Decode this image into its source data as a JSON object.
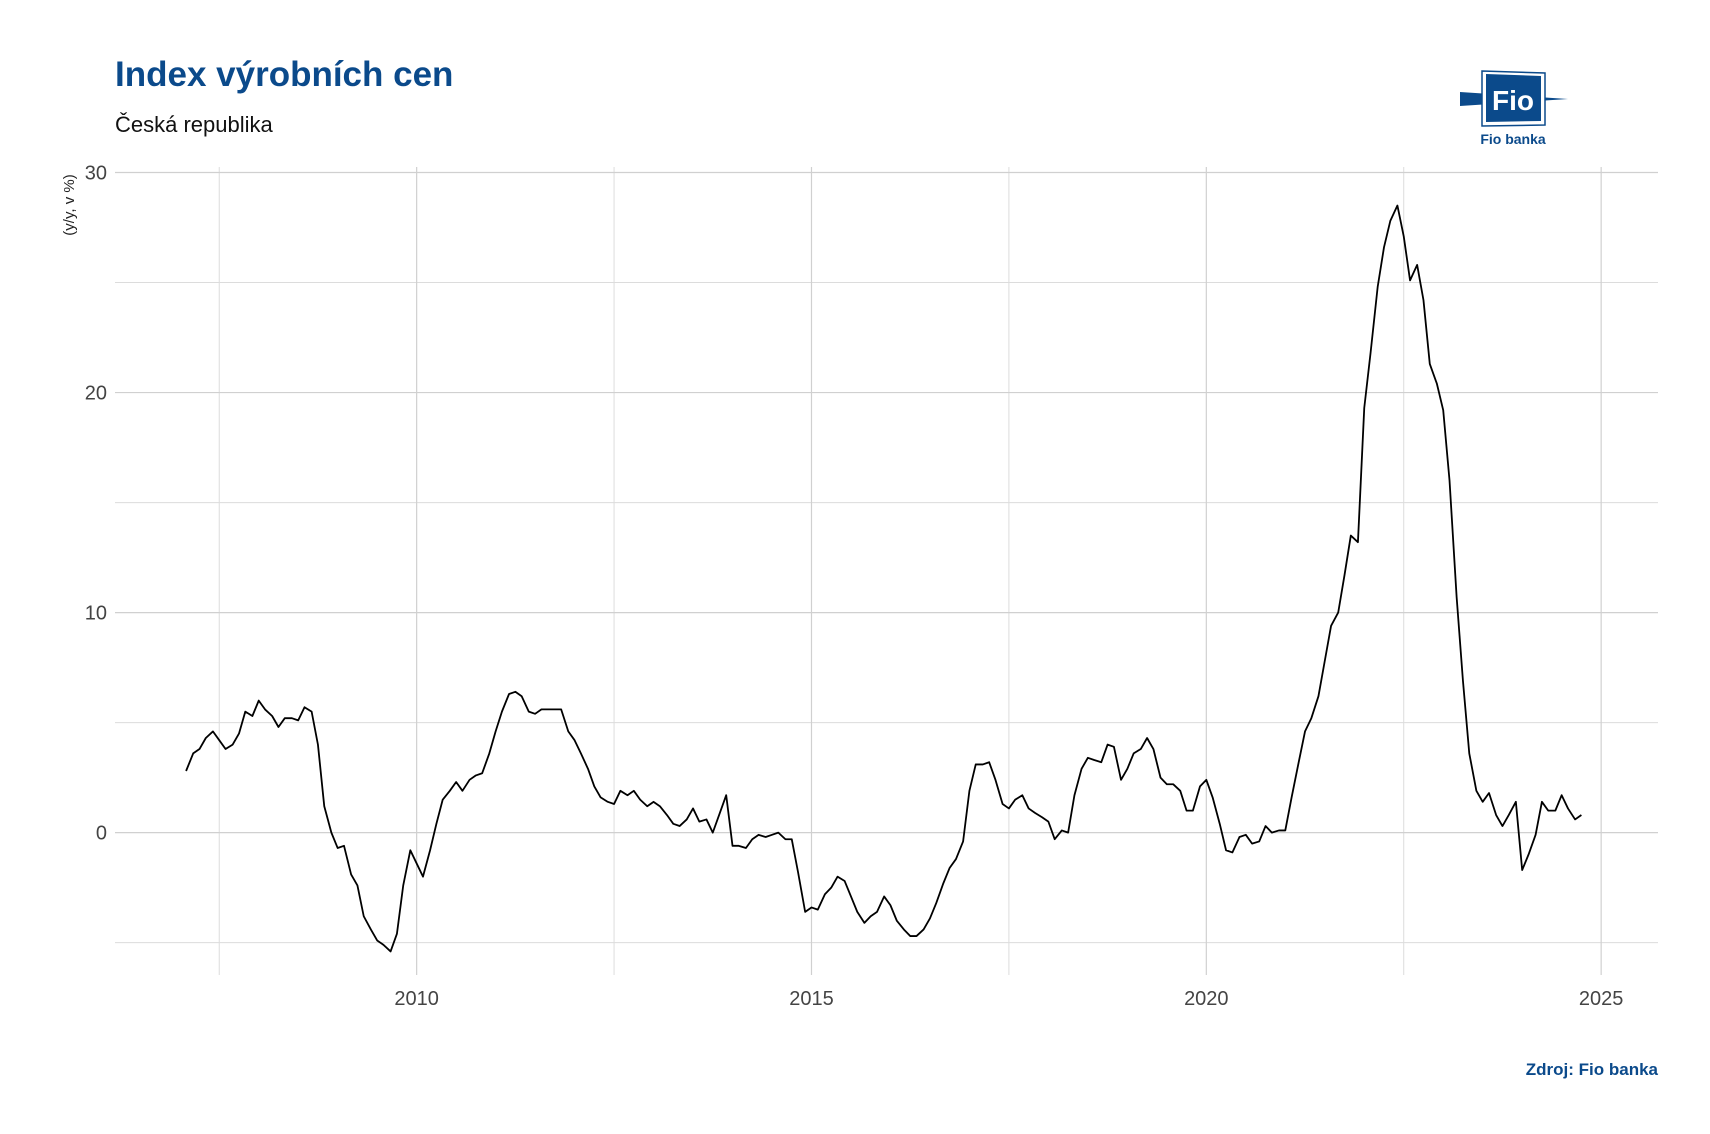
{
  "chart_data": {
    "type": "line",
    "title": "Index výrobních cen",
    "subtitle": "Česká republika",
    "y_label": "(y/y, v %)",
    "source": "Zdroj: Fio banka",
    "logo": {
      "mark": "Fio",
      "name": "Fio banka"
    },
    "xlim": [
      2006.18,
      2025.72
    ],
    "ylim": [
      -6.47,
      30.25
    ],
    "xticks": [
      2010,
      2015,
      2020,
      2025
    ],
    "yticks": [
      0,
      10,
      20,
      30
    ],
    "xminorticks": [
      2007.5,
      2012.5,
      2017.5,
      2022.5
    ],
    "yminorticks": [
      -5,
      5,
      15,
      25
    ],
    "grid": true,
    "series": [
      {
        "color": "#000000",
        "x": [
          2007.08,
          2007.17,
          2007.25,
          2007.33,
          2007.42,
          2007.5,
          2007.58,
          2007.67,
          2007.75,
          2007.83,
          2007.92,
          2008.0,
          2008.08,
          2008.17,
          2008.25,
          2008.33,
          2008.42,
          2008.5,
          2008.58,
          2008.67,
          2008.75,
          2008.83,
          2008.92,
          2009.0,
          2009.08,
          2009.17,
          2009.25,
          2009.33,
          2009.42,
          2009.5,
          2009.58,
          2009.67,
          2009.75,
          2009.83,
          2009.92,
          2010.0,
          2010.08,
          2010.17,
          2010.25,
          2010.33,
          2010.42,
          2010.5,
          2010.58,
          2010.67,
          2010.75,
          2010.83,
          2010.92,
          2011.0,
          2011.08,
          2011.17,
          2011.25,
          2011.33,
          2011.42,
          2011.5,
          2011.58,
          2011.67,
          2011.75,
          2011.83,
          2011.92,
          2012.0,
          2012.08,
          2012.17,
          2012.25,
          2012.33,
          2012.42,
          2012.5,
          2012.58,
          2012.67,
          2012.75,
          2012.83,
          2012.92,
          2013.0,
          2013.08,
          2013.17,
          2013.25,
          2013.33,
          2013.42,
          2013.5,
          2013.58,
          2013.67,
          2013.75,
          2013.83,
          2013.92,
          2014.0,
          2014.08,
          2014.17,
          2014.25,
          2014.33,
          2014.42,
          2014.5,
          2014.58,
          2014.67,
          2014.75,
          2014.83,
          2014.92,
          2015.0,
          2015.08,
          2015.17,
          2015.25,
          2015.33,
          2015.42,
          2015.5,
          2015.58,
          2015.67,
          2015.75,
          2015.83,
          2015.92,
          2016.0,
          2016.08,
          2016.17,
          2016.25,
          2016.33,
          2016.42,
          2016.5,
          2016.58,
          2016.67,
          2016.75,
          2016.83,
          2016.92,
          2017.0,
          2017.08,
          2017.17,
          2017.25,
          2017.33,
          2017.42,
          2017.5,
          2017.58,
          2017.67,
          2017.75,
          2017.83,
          2017.92,
          2018.0,
          2018.08,
          2018.17,
          2018.25,
          2018.33,
          2018.42,
          2018.5,
          2018.58,
          2018.67,
          2018.75,
          2018.83,
          2018.92,
          2019.0,
          2019.08,
          2019.17,
          2019.25,
          2019.33,
          2019.42,
          2019.5,
          2019.58,
          2019.67,
          2019.75,
          2019.83,
          2019.92,
          2020.0,
          2020.08,
          2020.17,
          2020.25,
          2020.33,
          2020.42,
          2020.5,
          2020.58,
          2020.67,
          2020.75,
          2020.83,
          2020.92,
          2021.0,
          2021.08,
          2021.17,
          2021.25,
          2021.33,
          2021.42,
          2021.5,
          2021.58,
          2021.67,
          2021.75,
          2021.83,
          2021.92,
          2022.0,
          2022.08,
          2022.17,
          2022.25,
          2022.33,
          2022.42,
          2022.5,
          2022.58,
          2022.67,
          2022.75,
          2022.83,
          2022.92,
          2023.0,
          2023.08,
          2023.17,
          2023.25,
          2023.33,
          2023.42,
          2023.5,
          2023.58,
          2023.67,
          2023.75,
          2023.83,
          2023.92,
          2024.0,
          2024.08,
          2024.17,
          2024.25,
          2024.33,
          2024.42,
          2024.5,
          2024.58,
          2024.67,
          2024.75
        ],
        "values": [
          2.8,
          3.6,
          3.8,
          4.3,
          4.6,
          4.2,
          3.8,
          4.0,
          4.5,
          5.5,
          5.3,
          6.0,
          5.6,
          5.3,
          4.8,
          5.2,
          5.2,
          5.1,
          5.7,
          5.5,
          4.0,
          1.2,
          0.0,
          -0.7,
          -0.6,
          -1.9,
          -2.4,
          -3.8,
          -4.4,
          -4.9,
          -5.1,
          -5.4,
          -4.6,
          -2.4,
          -0.8,
          -1.4,
          -2.0,
          -0.8,
          0.4,
          1.5,
          1.9,
          2.3,
          1.9,
          2.4,
          2.6,
          2.7,
          3.6,
          4.6,
          5.5,
          6.3,
          6.4,
          6.2,
          5.5,
          5.4,
          5.6,
          5.6,
          5.6,
          5.6,
          4.6,
          4.2,
          3.6,
          2.9,
          2.1,
          1.6,
          1.4,
          1.3,
          1.9,
          1.7,
          1.9,
          1.5,
          1.2,
          1.4,
          1.2,
          0.8,
          0.4,
          0.3,
          0.6,
          1.1,
          0.5,
          0.6,
          0.0,
          0.8,
          1.7,
          -0.6,
          -0.6,
          -0.7,
          -0.3,
          -0.1,
          -0.2,
          -0.1,
          0.0,
          -0.3,
          -0.3,
          -1.8,
          -3.6,
          -3.4,
          -3.5,
          -2.8,
          -2.5,
          -2.0,
          -2.2,
          -2.9,
          -3.6,
          -4.1,
          -3.8,
          -3.6,
          -2.9,
          -3.3,
          -4.0,
          -4.4,
          -4.7,
          -4.7,
          -4.4,
          -3.9,
          -3.2,
          -2.3,
          -1.6,
          -1.2,
          -0.4,
          1.9,
          3.1,
          3.1,
          3.2,
          2.4,
          1.3,
          1.1,
          1.5,
          1.7,
          1.1,
          0.9,
          0.7,
          0.5,
          -0.3,
          0.1,
          0.0,
          1.7,
          2.9,
          3.4,
          3.3,
          3.2,
          4.0,
          3.9,
          2.4,
          2.9,
          3.6,
          3.8,
          4.3,
          3.8,
          2.5,
          2.2,
          2.2,
          1.9,
          1.0,
          1.0,
          2.1,
          2.4,
          1.6,
          0.4,
          -0.8,
          -0.9,
          -0.2,
          -0.1,
          -0.5,
          -0.4,
          0.3,
          0.0,
          0.1,
          0.1,
          1.6,
          3.2,
          4.6,
          5.2,
          6.2,
          7.8,
          9.4,
          10.0,
          11.7,
          13.5,
          13.2,
          19.3,
          21.8,
          24.8,
          26.6,
          27.8,
          28.5,
          27.1,
          25.1,
          25.8,
          24.2,
          21.3,
          20.4,
          19.2,
          16.0,
          10.7,
          6.9,
          3.6,
          1.9,
          1.4,
          1.8,
          0.8,
          0.3,
          0.8,
          1.4,
          -1.7,
          -1.0,
          -0.1,
          1.4,
          1.0,
          1.0,
          1.7,
          1.1,
          0.6,
          0.8
        ]
      }
    ]
  }
}
